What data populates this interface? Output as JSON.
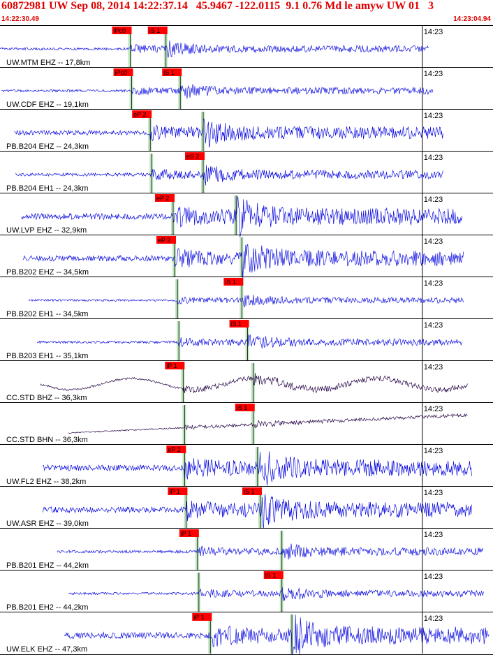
{
  "header": {
    "title": "60872981 UW Sep 08, 2014 14:22:37.14   45.9467 -122.0115  9.1 0.76 Md le amyw UW 01   3",
    "time_start": "14:22:30.49",
    "time_end": "14:23:04.94"
  },
  "chart_data": {
    "type": "line",
    "description_kind": "seismogram-traces",
    "time_range": [
      "14:22:30.49",
      "14:23:04.94"
    ],
    "minute_tick_label": "14:23",
    "colors": {
      "trace": "#1010e0",
      "trace_long_period": "#2a0a4a",
      "pick_box": "#ff0000",
      "window": "#bfe6bf",
      "grid": "#000000",
      "title": "#e00000"
    },
    "traces": [
      {
        "label": "UW.MTM EHZ -- 17,8km",
        "color": "#1010e0",
        "amplitude": 0.35,
        "p_pick": "iPc0",
        "s_pick": "iS 1",
        "p_time": 9.1,
        "s_time": 11.6,
        "start": 0.0,
        "end": 30.0
      },
      {
        "label": "UW.CDF EHZ -- 19,1km",
        "color": "#1010e0",
        "amplitude": 0.35,
        "p_pick": "iPc0",
        "s_pick": "iS 1",
        "p_time": 9.2,
        "s_time": 12.6,
        "start": 0.1,
        "end": 30.3
      },
      {
        "label": "PB.B204 EHZ -- 24,3km",
        "color": "#1010e0",
        "amplitude": 0.65,
        "p_pick": "eP 2",
        "s_pick": "",
        "p_time": 10.5,
        "s_time": 14.2,
        "start": 1.0,
        "end": 31.0
      },
      {
        "label": "PB.B204 EH1 -- 24,3km",
        "color": "#1010e0",
        "amplitude": 0.45,
        "p_pick": "",
        "s_pick": "eS 2",
        "p_time": 10.6,
        "s_time": 14.2,
        "start": 1.1,
        "end": 31.0
      },
      {
        "label": "UW.LVP EHZ -- 32,9km",
        "color": "#1010e0",
        "amplitude": 0.85,
        "p_pick": "eP 2",
        "s_pick": "",
        "p_time": 12.1,
        "s_time": 16.5,
        "start": 1.5,
        "end": 32.3
      },
      {
        "label": "PB.B202 EHZ -- 34,5km",
        "color": "#1010e0",
        "amplitude": 0.8,
        "p_pick": "eP 2",
        "s_pick": "",
        "p_time": 12.2,
        "s_time": 16.9,
        "start": 1.6,
        "end": 32.4
      },
      {
        "label": "PB.B202 EH1 -- 34,5km",
        "color": "#1010e0",
        "amplitude": 0.3,
        "p_pick": "",
        "s_pick": "iS 1",
        "p_time": 12.4,
        "s_time": 16.9,
        "start": 2.0,
        "end": 32.4
      },
      {
        "label": "PB.B203 EH1 -- 35,1km",
        "color": "#1010e0",
        "amplitude": 0.35,
        "p_pick": "",
        "s_pick": "iS 1",
        "p_time": 12.5,
        "s_time": 17.3,
        "start": 2.6,
        "end": 32.3
      },
      {
        "label": "CC.STD BHZ -- 36,3km",
        "color": "#2a0a4a",
        "amplitude": 0.5,
        "p_pick": "iP 1",
        "s_pick": "",
        "p_time": 12.8,
        "s_time": 17.7,
        "start": 2.8,
        "end": 32.7
      },
      {
        "label": "CC.STD BHN -- 36,3km",
        "color": "#2a0a4a",
        "amplitude": 0.3,
        "p_pick": "",
        "s_pick": "iS 1",
        "p_time": 12.9,
        "s_time": 17.7,
        "start": 4.8,
        "end": 32.7
      },
      {
        "label": "UW.FL2 EHZ -- 38,2km",
        "color": "#1010e0",
        "amplitude": 0.85,
        "p_pick": "eP 2",
        "s_pick": "",
        "p_time": 12.9,
        "s_time": 18.0,
        "start": 3.0,
        "end": 33.0
      },
      {
        "label": "UW.ASR EHZ -- 39,0km",
        "color": "#1010e0",
        "amplitude": 0.8,
        "p_pick": "iP 1",
        "s_pick": "iS 1",
        "p_time": 13.0,
        "s_time": 18.2,
        "start": 3.0,
        "end": 33.0
      },
      {
        "label": "PB.B201 EHZ -- 44,2km",
        "color": "#1010e0",
        "amplitude": 0.4,
        "p_pick": "iP 1",
        "s_pick": "",
        "p_time": 13.8,
        "s_time": 19.7,
        "start": 4.0,
        "end": 33.8
      },
      {
        "label": "PB.B201 EH2 -- 44,2km",
        "color": "#1010e0",
        "amplitude": 0.35,
        "p_pick": "",
        "s_pick": "iS 1",
        "p_time": 13.9,
        "s_time": 19.7,
        "start": 4.8,
        "end": 33.8
      },
      {
        "label": "UW.ELK EHZ -- 47,3km",
        "color": "#1010e0",
        "amplitude": 0.9,
        "p_pick": "iP 1",
        "s_pick": "",
        "p_time": 14.7,
        "s_time": 20.4,
        "start": 4.5,
        "end": 34.2
      }
    ]
  }
}
